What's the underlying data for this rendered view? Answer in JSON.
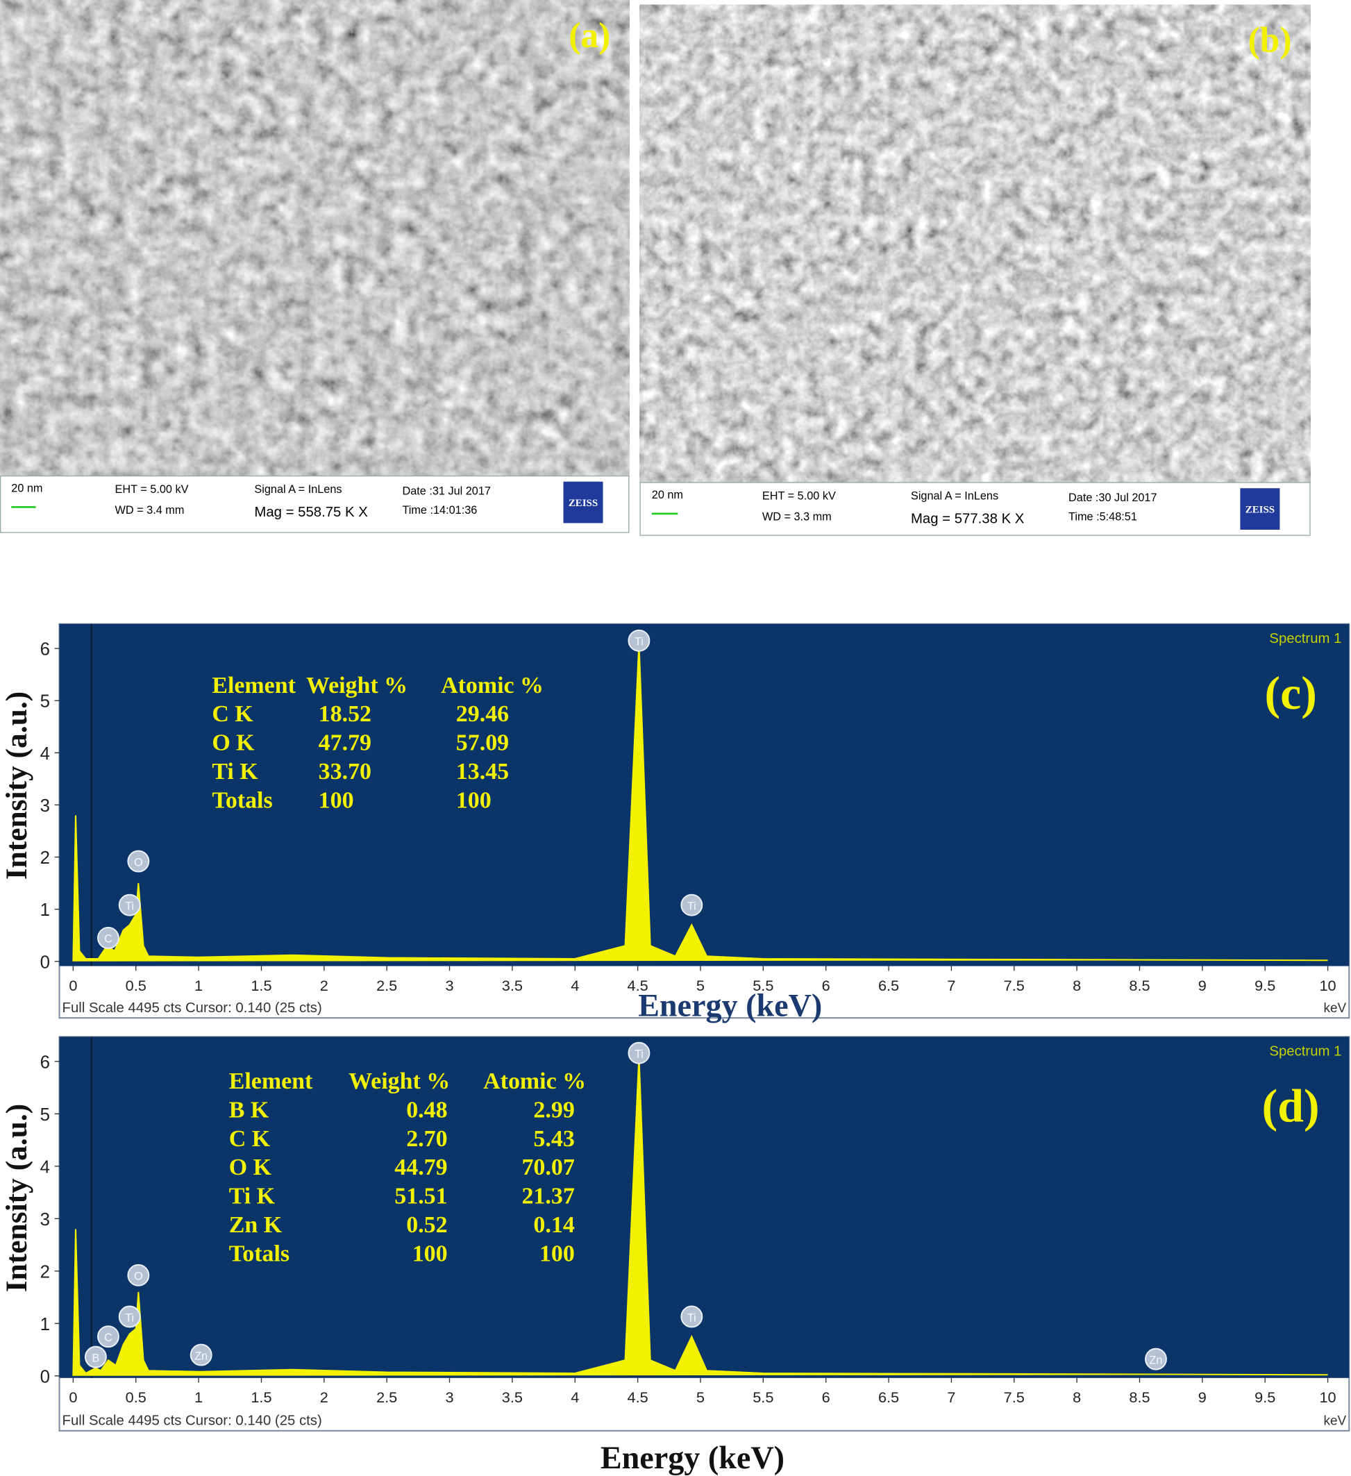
{
  "sem_panels": [
    {
      "label": "(a)",
      "scale_bar": "20 nm",
      "eht": "EHT = 5.00 kV",
      "wd": "WD = 3.4 mm",
      "signal": "Signal A = InLens",
      "mag": "Mag = 558.75 K X",
      "date": "Date :31 Jul 2017",
      "time": "Time :14:01:36",
      "logo": "ZEISS"
    },
    {
      "label": "(b)",
      "scale_bar": "20 nm",
      "eht": "EHT = 5.00 kV",
      "wd": "WD = 3.3 mm",
      "signal": "Signal A = InLens",
      "mag": "Mag = 577.38 K X",
      "date": "Date :30 Jul 2017",
      "time": "Time :5:48:51",
      "logo": "ZEISS"
    }
  ],
  "chart_data": [
    {
      "type": "area",
      "panel_label": "(c)",
      "spectrum_label": "Spectrum 1",
      "x_label": "Energy (keV)",
      "y_label": "Intensity (a.u.)",
      "footer": "Full Scale 4495 cts Cursor: 0.140  (25 cts)",
      "x_unit": "keV",
      "color": "#f2f200",
      "background": "#0b3468",
      "x": [
        0,
        0.02,
        0.05,
        0.1,
        0.2,
        0.27,
        0.33,
        0.4,
        0.45,
        0.5,
        0.52,
        0.56,
        0.6,
        1,
        1.75,
        2.5,
        4,
        4.4,
        4.51,
        4.6,
        4.8,
        4.93,
        5.05,
        5.5,
        10
      ],
      "values": [
        0,
        2.8,
        0.2,
        0.05,
        0.05,
        0.3,
        0.2,
        0.6,
        0.7,
        0.9,
        1.5,
        0.3,
        0.1,
        0.08,
        0.12,
        0.07,
        0.05,
        0.3,
        6.1,
        0.3,
        0.1,
        0.7,
        0.1,
        0.05,
        0.02
      ],
      "xlim": [
        -0.11,
        10.17
      ],
      "ylim": [
        -0.09,
        6.47
      ],
      "xticks": [
        0,
        0.5,
        1,
        1.5,
        2,
        2.5,
        3,
        3.5,
        4,
        4.5,
        5,
        5.5,
        6,
        6.5,
        7,
        7.5,
        8,
        8.5,
        9,
        9.5,
        10
      ],
      "yticks": [
        0,
        1,
        2,
        3,
        4,
        5,
        6
      ],
      "annotations": [
        {
          "label": "C",
          "x": 0.28,
          "y": 0.45
        },
        {
          "label": "Ti",
          "x": 0.45,
          "y": 1.08
        },
        {
          "label": "O",
          "x": 0.52,
          "y": 1.92
        },
        {
          "label": "Ti",
          "x": 4.51,
          "y": 6.15
        },
        {
          "label": "Ti",
          "x": 4.93,
          "y": 1.08
        }
      ],
      "table": {
        "header": [
          "Element",
          "Weight %",
          "Atomic %"
        ],
        "rows": [
          [
            "C K",
            "18.52",
            "29.46"
          ],
          [
            "O K",
            "47.79",
            "57.09"
          ],
          [
            "Ti K",
            "33.70",
            "13.45"
          ],
          [
            "Totals",
            "100",
            "100"
          ]
        ]
      }
    },
    {
      "type": "area",
      "panel_label": "(d)",
      "spectrum_label": "Spectrum 1",
      "x_label": "Energy (keV)",
      "y_label": "Intensity (a.u.)",
      "footer": "Full Scale 4495 cts Cursor: 0.140  (25 cts)",
      "x_unit": "keV",
      "color": "#f2f200",
      "background": "#0b3468",
      "x": [
        0,
        0.02,
        0.05,
        0.1,
        0.18,
        0.22,
        0.28,
        0.34,
        0.4,
        0.45,
        0.5,
        0.52,
        0.56,
        0.6,
        1.01,
        1.75,
        2.5,
        4,
        4.4,
        4.51,
        4.6,
        4.8,
        4.93,
        5.05,
        5.5,
        8.63,
        10
      ],
      "values": [
        0,
        2.8,
        0.2,
        0.05,
        0.15,
        0.1,
        0.3,
        0.2,
        0.6,
        0.8,
        0.9,
        1.6,
        0.3,
        0.1,
        0.08,
        0.12,
        0.07,
        0.05,
        0.3,
        6.1,
        0.3,
        0.1,
        0.75,
        0.1,
        0.05,
        0.03,
        0.02
      ],
      "xlim": [
        -0.11,
        10.17
      ],
      "ylim": [
        -0.04,
        6.47
      ],
      "xticks": [
        0,
        0.5,
        1,
        1.5,
        2,
        2.5,
        3,
        3.5,
        4,
        4.5,
        5,
        5.5,
        6,
        6.5,
        7,
        7.5,
        8,
        8.5,
        9,
        9.5,
        10
      ],
      "yticks": [
        0,
        1,
        2,
        3,
        4,
        5,
        6
      ],
      "annotations": [
        {
          "label": "B",
          "x": 0.18,
          "y": 0.36
        },
        {
          "label": "C",
          "x": 0.28,
          "y": 0.75
        },
        {
          "label": "Ti",
          "x": 0.45,
          "y": 1.13
        },
        {
          "label": "O",
          "x": 0.52,
          "y": 1.92
        },
        {
          "label": "Zn",
          "x": 1.02,
          "y": 0.4
        },
        {
          "label": "Ti",
          "x": 4.51,
          "y": 6.16
        },
        {
          "label": "Ti",
          "x": 4.93,
          "y": 1.13
        },
        {
          "label": "Zn",
          "x": 8.63,
          "y": 0.32
        }
      ],
      "table": {
        "header": [
          "Element",
          "Weight %",
          "Atomic %"
        ],
        "rows": [
          [
            "B K",
            "0.48",
            "2.99"
          ],
          [
            "C K",
            "2.70",
            "5.43"
          ],
          [
            "O K",
            "44.79",
            "70.07"
          ],
          [
            "Ti K",
            "51.51",
            "21.37"
          ],
          [
            "Zn K",
            "0.52",
            "0.14"
          ],
          [
            "Totals",
            "100",
            "100"
          ]
        ]
      }
    }
  ]
}
